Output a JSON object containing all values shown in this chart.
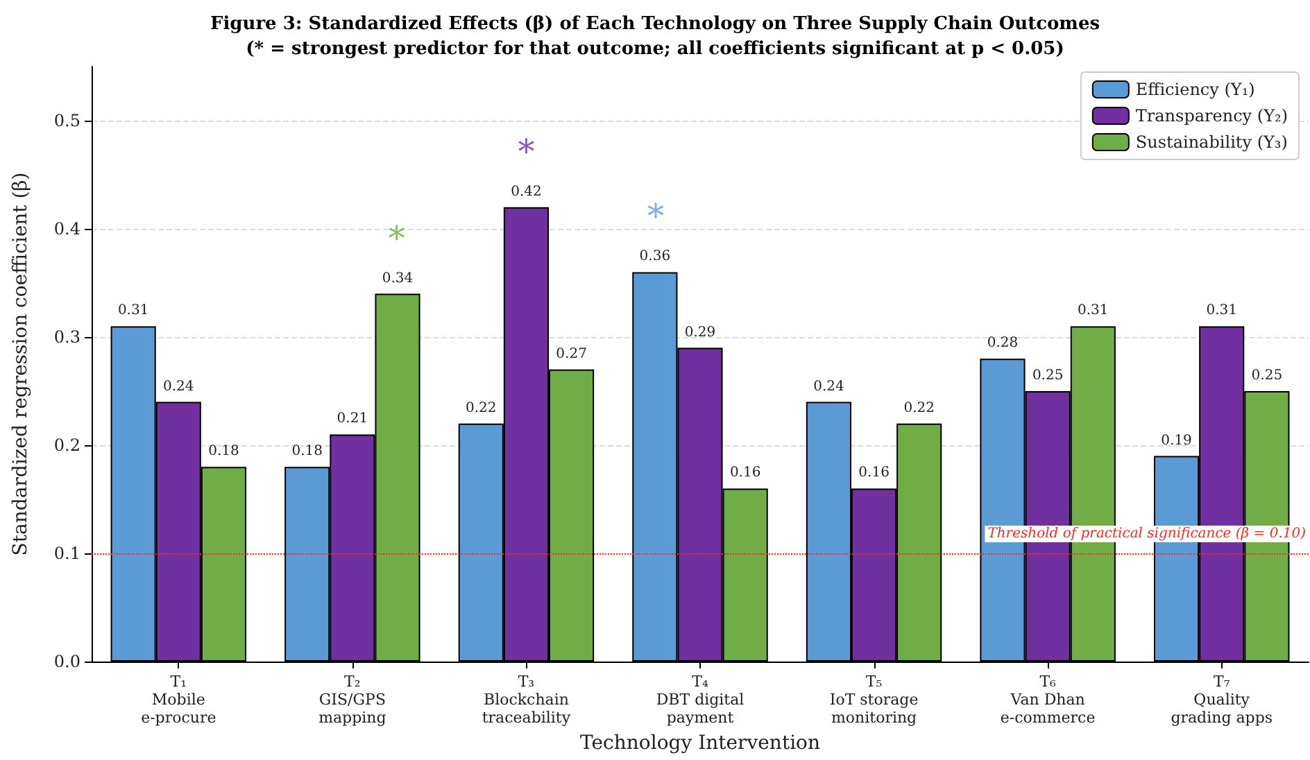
{
  "chart_data": {
    "type": "bar",
    "title": "Figure 3: Standardized Effects (β) of Each Technology on Three Supply Chain Outcomes",
    "subtitle": "(* = strongest predictor for that outcome; all coefficients significant at p < 0.05)",
    "xlabel": "Technology Intervention",
    "ylabel": "Standardized regression coefficient (β)",
    "categories": [
      "T₁\nMobile\ne-procure",
      "T₂\nGIS/GPS\nmapping",
      "T₃\nBlockchain\ntraceability",
      "T₄\nDBT digital\npayment",
      "T₅\nIoT storage\nmonitoring",
      "T₆\nVan Dhan\ne-commerce",
      "T₇\nQuality\ngrading apps"
    ],
    "series": [
      {
        "name": "Efficiency (Y₁)",
        "color": "#5b9bd5",
        "values": [
          0.31,
          0.18,
          0.22,
          0.36,
          0.24,
          0.28,
          0.19
        ]
      },
      {
        "name": "Transparency (Y₂)",
        "color": "#7030a0",
        "values": [
          0.24,
          0.21,
          0.42,
          0.29,
          0.16,
          0.25,
          0.31
        ]
      },
      {
        "name": "Sustainability (Y₃)",
        "color": "#70ad47",
        "values": [
          0.18,
          0.34,
          0.27,
          0.16,
          0.22,
          0.31,
          0.25
        ]
      }
    ],
    "ylim": [
      0,
      0.55
    ],
    "yticks": [
      {
        "value": 0,
        "label": "0.0"
      },
      {
        "value": 0.1,
        "label": "0.1"
      },
      {
        "value": 0.2,
        "label": "0.2"
      },
      {
        "value": 0.3,
        "label": "0.3"
      },
      {
        "value": 0.4,
        "label": "0.4"
      },
      {
        "value": 0.5,
        "label": "0.5"
      }
    ],
    "ref_lines": [
      {
        "axis": "y",
        "value": 0.1,
        "label": "Threshold of practical significance (β = 0.10)",
        "color": "#e8302a",
        "line_style": "dotted"
      }
    ],
    "annotations": [
      "*",
      "*",
      "*"
    ],
    "data_labels": true,
    "grid": "y",
    "legend": "top right"
  }
}
